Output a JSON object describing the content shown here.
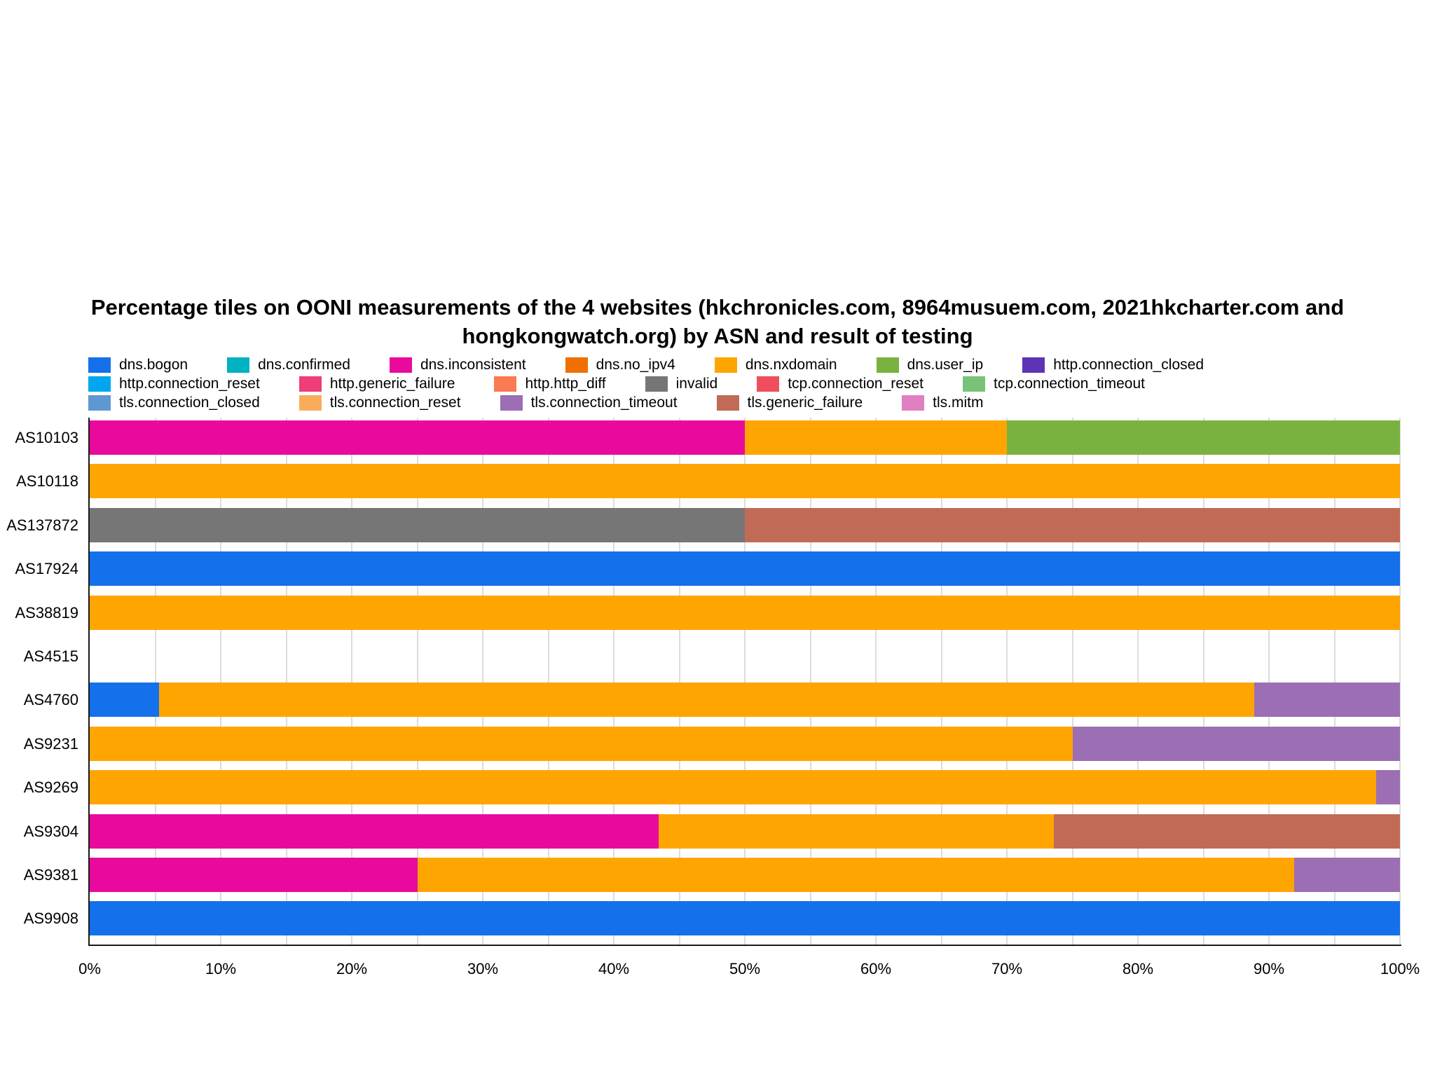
{
  "title": {
    "line1": "Percentage tiles on OONI measurements of the 4 websites (hkchronicles.com, 8964musuem.com,  2021hkcharter.com and",
    "line2": "hongkongwatch.org) by ASN and result of testing"
  },
  "chart_data": {
    "type": "bar",
    "orientation": "horizontal-stacked",
    "title": "Percentage tiles on OONI measurements of the 4 websites (hkchronicles.com, 8964musuem.com, 2021hkcharter.com and hongkongwatch.org) by ASN and result of testing",
    "xlabel": "",
    "ylabel": "",
    "xlim": [
      0,
      100
    ],
    "gridline_step_percent": 5,
    "grid": true,
    "legend_position": "top",
    "x_tick_labels": [
      "0%",
      "10%",
      "20%",
      "30%",
      "40%",
      "50%",
      "60%",
      "70%",
      "80%",
      "90%",
      "100%"
    ],
    "categories": [
      {
        "label": "dns.bogon",
        "color": "#1470eb"
      },
      {
        "label": "dns.confirmed",
        "color": "#00b2c2"
      },
      {
        "label": "dns.inconsistent",
        "color": "#e90a9d"
      },
      {
        "label": "dns.no_ipv4",
        "color": "#ef7000"
      },
      {
        "label": "dns.nxdomain",
        "color": "#ffa502"
      },
      {
        "label": "dns.user_ip",
        "color": "#7ab23f"
      },
      {
        "label": "http.connection_closed",
        "color": "#5c34b5"
      },
      {
        "label": "http.connection_reset",
        "color": "#00a7f0"
      },
      {
        "label": "http.generic_failure",
        "color": "#ee3d78"
      },
      {
        "label": "http.http_diff",
        "color": "#fa7a52"
      },
      {
        "label": "invalid",
        "color": "#767676"
      },
      {
        "label": "tcp.connection_reset",
        "color": "#ee4f5a"
      },
      {
        "label": "tcp.connection_timeout",
        "color": "#79c378"
      },
      {
        "label": "tls.connection_closed",
        "color": "#5f97d3"
      },
      {
        "label": "tls.connection_reset",
        "color": "#f9ad5a"
      },
      {
        "label": "tls.connection_timeout",
        "color": "#9c6eb3"
      },
      {
        "label": "tls.generic_failure",
        "color": "#c16a55"
      },
      {
        "label": "tls.mitm",
        "color": "#e07fc1"
      }
    ],
    "legend_rows": [
      [
        "dns.bogon",
        "dns.confirmed",
        "dns.inconsistent",
        "dns.no_ipv4",
        "dns.nxdomain",
        "dns.user_ip",
        "http.connection_closed"
      ],
      [
        "http.connection_reset",
        "http.generic_failure",
        "http.http_diff",
        "invalid",
        "tcp.connection_reset",
        "tcp.connection_timeout"
      ],
      [
        "tls.connection_closed",
        "tls.connection_reset",
        "tls.connection_timeout",
        "tls.generic_failure",
        "tls.mitm"
      ]
    ],
    "rows": [
      {
        "label": "AS10103",
        "segments": [
          {
            "category": "dns.inconsistent",
            "value": 50
          },
          {
            "category": "dns.nxdomain",
            "value": 20
          },
          {
            "category": "dns.user_ip",
            "value": 30
          }
        ]
      },
      {
        "label": "AS10118",
        "segments": [
          {
            "category": "dns.nxdomain",
            "value": 100
          }
        ]
      },
      {
        "label": "AS137872",
        "segments": [
          {
            "category": "invalid",
            "value": 50
          },
          {
            "category": "tls.generic_failure",
            "value": 50
          }
        ]
      },
      {
        "label": "AS17924",
        "segments": [
          {
            "category": "dns.bogon",
            "value": 100
          }
        ]
      },
      {
        "label": "AS38819",
        "segments": [
          {
            "category": "dns.nxdomain",
            "value": 100
          }
        ]
      },
      {
        "label": "AS4515",
        "segments": []
      },
      {
        "label": "AS4760",
        "segments": [
          {
            "category": "dns.bogon",
            "value": 5.3
          },
          {
            "category": "dns.nxdomain",
            "value": 83.6
          },
          {
            "category": "tls.connection_timeout",
            "value": 11.1
          }
        ]
      },
      {
        "label": "AS9231",
        "segments": [
          {
            "category": "dns.nxdomain",
            "value": 75
          },
          {
            "category": "tls.connection_timeout",
            "value": 25
          }
        ]
      },
      {
        "label": "AS9269",
        "segments": [
          {
            "category": "dns.nxdomain",
            "value": 98.2
          },
          {
            "category": "tls.connection_timeout",
            "value": 1.8
          }
        ]
      },
      {
        "label": "AS9304",
        "segments": [
          {
            "category": "dns.inconsistent",
            "value": 43.4
          },
          {
            "category": "dns.nxdomain",
            "value": 30.2
          },
          {
            "category": "tls.generic_failure",
            "value": 26.4
          }
        ]
      },
      {
        "label": "AS9381",
        "segments": [
          {
            "category": "dns.inconsistent",
            "value": 25
          },
          {
            "category": "dns.nxdomain",
            "value": 66.9
          },
          {
            "category": "tls.connection_timeout",
            "value": 8.1
          }
        ]
      },
      {
        "label": "AS9908",
        "segments": [
          {
            "category": "dns.bogon",
            "value": 100
          }
        ]
      }
    ]
  },
  "colors": {
    "background": "#ffffff",
    "gridline": "#dcdcdc",
    "axis": "#1a1a1a",
    "text": "#000000"
  }
}
